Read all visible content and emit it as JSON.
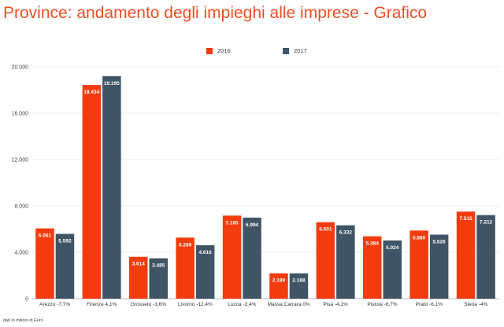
{
  "title": "Province: andamento degli impieghi alle imprese - Grafico",
  "footnote": "dati in milioni di Euro",
  "chart_data": {
    "type": "bar",
    "categories": [
      "Arezzo -7,7%",
      "Firenze 4,1%",
      "Grosseto -3,6%",
      "Livorno -12,4%",
      "Lucca -2,4%",
      "Massa Carrara 0%",
      "Pisa -4,1%",
      "Pistoia -6,7%",
      "Prato -6,1%",
      "Siena -4%"
    ],
    "series": [
      {
        "name": "2016",
        "color": "#f23c0e",
        "values": [
          6061,
          18434,
          3614,
          5269,
          7165,
          2189,
          6601,
          5384,
          5880,
          7515
        ],
        "labels": [
          "6.061",
          "18.434",
          "3.614",
          "5.269",
          "7.165",
          "2.189",
          "6.601",
          "5.384",
          "5.880",
          "7.515"
        ]
      },
      {
        "name": "2017",
        "color": "#3f5565",
        "values": [
          5592,
          19195,
          3485,
          4616,
          6994,
          2188,
          6332,
          5024,
          5526,
          7212
        ],
        "labels": [
          "5.592",
          "19.195",
          "3.485",
          "4.616",
          "6.994",
          "2.188",
          "6.332",
          "5.024",
          "5.526",
          "7.212"
        ]
      }
    ],
    "ylim": [
      0,
      20000
    ],
    "yticks": [
      0,
      4000,
      8000,
      12000,
      16000,
      20000
    ],
    "ytick_labels": [
      "0",
      "4.000",
      "8.000",
      "12.000",
      "16.000",
      "20.000"
    ],
    "grid": true,
    "legend": "top-center"
  }
}
